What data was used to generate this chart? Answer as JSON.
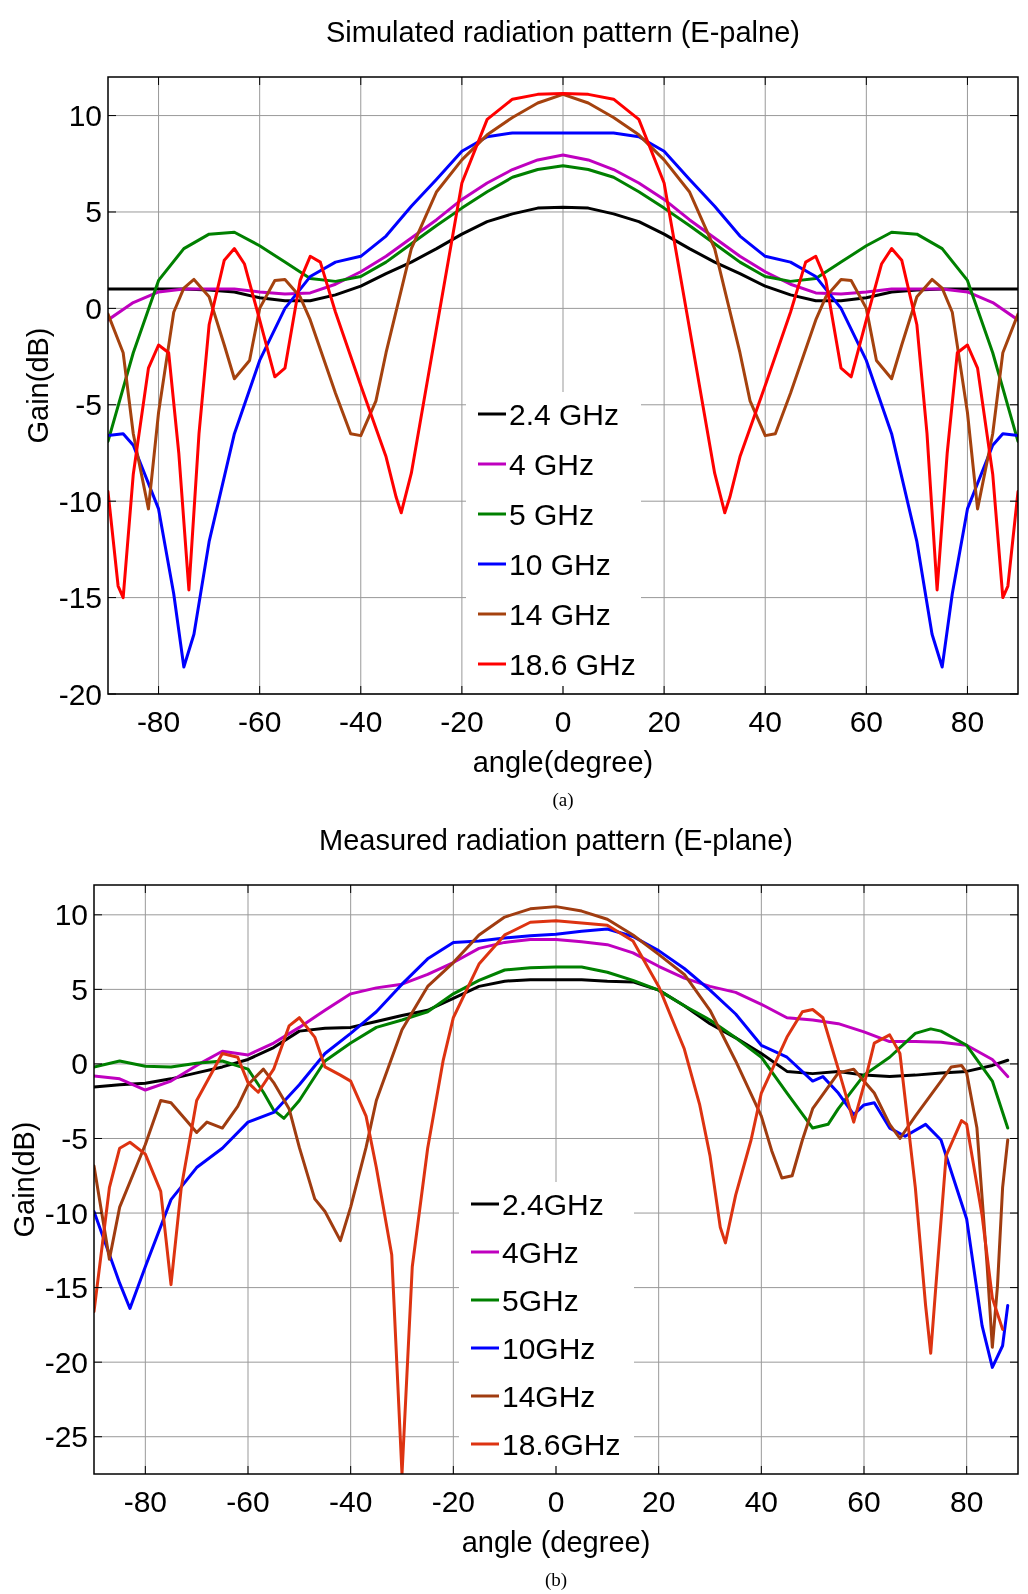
{
  "chart_data": [
    {
      "type": "line",
      "title": "Simulated radiation pattern (E-palne)",
      "xlabel": "angle(degree)",
      "ylabel": "Gain(dB)",
      "annotations": [
        "(a)"
      ],
      "xlim": [
        -90,
        90
      ],
      "ylim": [
        -20,
        12
      ],
      "xticks": [
        -80,
        -60,
        -40,
        -20,
        0,
        20,
        40,
        60,
        80
      ],
      "yticks": [
        -20,
        -15,
        -10,
        -5,
        0,
        5,
        10
      ],
      "grid": true,
      "legend": "bottom",
      "series": [
        {
          "name": "2.4 GHz",
          "color": "#000000",
          "x": [
            -90,
            -85,
            -80,
            -75,
            -70,
            -65,
            -60,
            -55,
            -50,
            -45,
            -40,
            -35,
            -30,
            -25,
            -20,
            -15,
            -10,
            -5,
            0,
            5,
            10,
            15,
            20,
            25,
            30,
            35,
            40,
            45,
            50,
            55,
            60,
            65,
            70,
            75,
            80,
            85,
            90
          ],
          "values": [
            1.0,
            1.0,
            1.0,
            1.0,
            0.95,
            0.85,
            0.55,
            0.4,
            0.4,
            0.7,
            1.15,
            1.8,
            2.4,
            3.1,
            3.85,
            4.5,
            4.9,
            5.2,
            5.25,
            5.2,
            4.9,
            4.5,
            3.85,
            3.1,
            2.4,
            1.8,
            1.15,
            0.7,
            0.4,
            0.4,
            0.55,
            0.85,
            0.95,
            1.0,
            1.0,
            1.0,
            1.0
          ]
        },
        {
          "name": "4 GHz",
          "color": "#bf00bf",
          "x": [
            -90,
            -85,
            -80,
            -75,
            -70,
            -65,
            -60,
            -55,
            -50,
            -45,
            -40,
            -35,
            -30,
            -25,
            -20,
            -15,
            -10,
            -5,
            0,
            5,
            10,
            15,
            20,
            25,
            30,
            35,
            40,
            45,
            50,
            55,
            60,
            65,
            70,
            75,
            80,
            85,
            90
          ],
          "values": [
            -0.6,
            0.3,
            0.85,
            1.0,
            1.0,
            1.0,
            0.85,
            0.75,
            0.8,
            1.25,
            1.9,
            2.7,
            3.65,
            4.6,
            5.65,
            6.5,
            7.2,
            7.7,
            7.95,
            7.7,
            7.2,
            6.5,
            5.65,
            4.6,
            3.65,
            2.7,
            1.9,
            1.25,
            0.8,
            0.75,
            0.85,
            1.0,
            1.0,
            1.0,
            0.85,
            0.3,
            -0.6
          ]
        },
        {
          "name": "5 GHz",
          "color": "#008000",
          "x": [
            -90,
            -85,
            -80,
            -75,
            -70,
            -65,
            -60,
            -55,
            -50,
            -45,
            -40,
            -35,
            -30,
            -25,
            -20,
            -15,
            -10,
            -5,
            0,
            5,
            10,
            15,
            20,
            25,
            30,
            35,
            40,
            45,
            50,
            55,
            60,
            65,
            70,
            75,
            80,
            85,
            90
          ],
          "values": [
            -6.9,
            -2.3,
            1.45,
            3.1,
            3.85,
            3.95,
            3.25,
            2.4,
            1.55,
            1.4,
            1.65,
            2.4,
            3.35,
            4.3,
            5.2,
            6.05,
            6.8,
            7.2,
            7.4,
            7.2,
            6.8,
            6.05,
            5.2,
            4.3,
            3.35,
            2.4,
            1.65,
            1.4,
            1.55,
            2.4,
            3.25,
            3.95,
            3.85,
            3.1,
            1.45,
            -2.3,
            -6.9
          ]
        },
        {
          "name": "10 GHz",
          "color": "#0000ff",
          "x": [
            -90,
            -87,
            -85,
            -80,
            -77,
            -75,
            -73,
            -70,
            -65,
            -60,
            -55,
            -50,
            -45,
            -40,
            -35,
            -30,
            -25,
            -20,
            -15,
            -10,
            0,
            10,
            15,
            20,
            25,
            30,
            35,
            40,
            45,
            50,
            55,
            60,
            65,
            70,
            73,
            75,
            77,
            80,
            85,
            87,
            90
          ],
          "values": [
            -6.6,
            -6.5,
            -7.1,
            -10.4,
            -14.8,
            -18.6,
            -16.9,
            -12.1,
            -6.5,
            -2.7,
            0,
            1.65,
            2.4,
            2.7,
            3.75,
            5.3,
            6.7,
            8.15,
            8.9,
            9.1,
            9.1,
            9.1,
            8.9,
            8.15,
            6.7,
            5.3,
            3.75,
            2.7,
            2.4,
            1.65,
            0,
            -2.7,
            -6.5,
            -12.1,
            -16.9,
            -18.6,
            -14.8,
            -10.4,
            -7.1,
            -6.5,
            -6.6
          ]
        },
        {
          "name": "14 GHz",
          "color": "#a5420e",
          "x": [
            -90,
            -87,
            -85,
            -82,
            -80,
            -77,
            -75,
            -73,
            -70,
            -67,
            -65,
            -62,
            -60,
            -57,
            -55,
            -52,
            -50,
            -45,
            -42,
            -40,
            -37,
            -35,
            -30,
            -25,
            -20,
            -15,
            -10,
            -5,
            0,
            5,
            10,
            15,
            20,
            25,
            30,
            35,
            37,
            40,
            42,
            45,
            50,
            52,
            55,
            57,
            60,
            62,
            65,
            67,
            70,
            73,
            75,
            77,
            80,
            82,
            85,
            87,
            90
          ],
          "values": [
            -0.3,
            -2.3,
            -6.5,
            -10.4,
            -5.4,
            -0.2,
            1.05,
            1.5,
            0.6,
            -1.9,
            -3.65,
            -2.7,
            0,
            1.45,
            1.5,
            0.6,
            -0.6,
            -4.4,
            -6.5,
            -6.6,
            -4.8,
            -2.3,
            3.1,
            6.05,
            7.7,
            9,
            9.9,
            10.65,
            11.1,
            10.65,
            9.9,
            9,
            7.7,
            6.05,
            3.1,
            -2.3,
            -4.8,
            -6.6,
            -6.5,
            -4.4,
            -0.6,
            0.6,
            1.5,
            1.45,
            0,
            -2.7,
            -3.65,
            -1.9,
            0.6,
            1.5,
            1.05,
            -0.2,
            -5.4,
            -10.4,
            -6.5,
            -2.3,
            -0.3
          ]
        },
        {
          "name": "18.6 GHz",
          "color": "#ff0000",
          "x": [
            -90,
            -88,
            -87,
            -85,
            -82,
            -80,
            -78,
            -76,
            -74,
            -72,
            -70,
            -67,
            -65,
            -63,
            -60,
            -57,
            -55,
            -52,
            -50,
            -48,
            -45,
            -40,
            -35,
            -33,
            -32,
            -30,
            -25,
            -20,
            -15,
            -10,
            -5,
            0,
            5,
            10,
            15,
            20,
            25,
            30,
            32,
            33,
            35,
            40,
            45,
            48,
            50,
            52,
            55,
            57,
            60,
            63,
            65,
            67,
            70,
            72,
            74,
            76,
            78,
            80,
            82,
            85,
            87,
            88,
            90
          ],
          "values": [
            -9.5,
            -14.4,
            -15,
            -8.6,
            -3.1,
            -1.9,
            -2.3,
            -7.5,
            -14.6,
            -6.5,
            -0.85,
            2.5,
            3.1,
            2.3,
            -0.6,
            -3.55,
            -3.1,
            1.45,
            2.7,
            2.4,
            -0.2,
            -4,
            -7.7,
            -9.8,
            -10.6,
            -8.55,
            -1,
            6.5,
            9.8,
            10.85,
            11.1,
            11.15,
            11.1,
            10.85,
            9.8,
            6.5,
            -1,
            -8.55,
            -10.6,
            -9.8,
            -7.7,
            -4,
            -0.2,
            2.4,
            2.7,
            1.45,
            -3.1,
            -3.55,
            -0.6,
            2.3,
            3.1,
            2.5,
            -0.85,
            -6.5,
            -14.6,
            -7.5,
            -2.3,
            -1.9,
            -3.1,
            -8.6,
            -15,
            -14.4,
            -9.5
          ]
        }
      ]
    },
    {
      "type": "line",
      "title": "Measured radiation pattern (E-plane)",
      "xlabel": "angle (degree)",
      "ylabel": "Gain(dB)",
      "annotations": [
        "(b)"
      ],
      "xlim": [
        -90,
        90
      ],
      "ylim": [
        -27.5,
        12
      ],
      "xticks": [
        -80,
        -60,
        -40,
        -20,
        0,
        20,
        40,
        60,
        80
      ],
      "yticks": [
        -25,
        -20,
        -15,
        -10,
        -5,
        0,
        5,
        10
      ],
      "grid": true,
      "legend": "bottom",
      "series": [
        {
          "name": "2.4GHz",
          "color": "#000000",
          "x": [
            -90,
            -85,
            -80,
            -75,
            -70,
            -65,
            -60,
            -55,
            -50,
            -45,
            -40,
            -35,
            -30,
            -25,
            -20,
            -15,
            -10,
            -5,
            0,
            5,
            10,
            15,
            20,
            25,
            30,
            35,
            40,
            45,
            50,
            55,
            60,
            65,
            70,
            75,
            80,
            85,
            88
          ],
          "values": [
            -1.55,
            -1.4,
            -1.3,
            -1.0,
            -0.6,
            -0.2,
            0.3,
            1.1,
            2.2,
            2.4,
            2.45,
            2.85,
            3.25,
            3.6,
            4.4,
            5.2,
            5.55,
            5.65,
            5.65,
            5.65,
            5.55,
            5.5,
            4.95,
            3.9,
            2.7,
            1.75,
            0.7,
            -0.5,
            -0.65,
            -0.5,
            -0.75,
            -0.85,
            -0.75,
            -0.6,
            -0.5,
            -0.1,
            0.25
          ]
        },
        {
          "name": "4GHz",
          "color": "#bf00bf",
          "x": [
            -90,
            -85,
            -80,
            -75,
            -70,
            -65,
            -60,
            -55,
            -50,
            -45,
            -40,
            -35,
            -30,
            -25,
            -20,
            -15,
            -10,
            -5,
            0,
            5,
            10,
            15,
            20,
            25,
            30,
            35,
            40,
            45,
            50,
            55,
            60,
            65,
            70,
            75,
            80,
            85,
            88
          ],
          "values": [
            -0.8,
            -1.0,
            -1.75,
            -1.15,
            -0.1,
            0.85,
            0.6,
            1.4,
            2.45,
            3.6,
            4.7,
            5.1,
            5.35,
            6.0,
            6.8,
            7.75,
            8.15,
            8.35,
            8.35,
            8.2,
            8.0,
            7.45,
            6.55,
            5.75,
            5.2,
            4.8,
            4.0,
            3.1,
            2.95,
            2.7,
            2.15,
            1.5,
            1.5,
            1.45,
            1.25,
            0.3,
            -0.85
          ]
        },
        {
          "name": "5GHz",
          "color": "#008000",
          "x": [
            -90,
            -85,
            -80,
            -75,
            -70,
            -65,
            -60,
            -57,
            -55,
            -53,
            -50,
            -45,
            -40,
            -35,
            -30,
            -25,
            -20,
            -15,
            -10,
            -5,
            0,
            5,
            10,
            15,
            20,
            25,
            30,
            35,
            40,
            45,
            50,
            53,
            55,
            60,
            65,
            70,
            73,
            75,
            80,
            85,
            88
          ],
          "values": [
            -0.2,
            0.2,
            -0.15,
            -0.2,
            0.05,
            0.2,
            -0.35,
            -1.9,
            -3.1,
            -3.65,
            -2.45,
            0.2,
            1.4,
            2.45,
            2.95,
            3.5,
            4.7,
            5.6,
            6.3,
            6.45,
            6.5,
            6.5,
            6.15,
            5.6,
            4.95,
            3.9,
            2.95,
            1.75,
            0.45,
            -1.95,
            -4.3,
            -4.05,
            -3.0,
            -0.75,
            0.45,
            2.05,
            2.35,
            2.2,
            1.25,
            -1.15,
            -4.3
          ]
        },
        {
          "name": "10GHz",
          "color": "#0000ff",
          "x": [
            -90,
            -85,
            -83,
            -80,
            -75,
            -70,
            -65,
            -60,
            -55,
            -50,
            -45,
            -40,
            -35,
            -30,
            -25,
            -20,
            -15,
            -10,
            -5,
            0,
            5,
            10,
            15,
            20,
            25,
            30,
            35,
            40,
            45,
            50,
            52,
            55,
            58,
            60,
            62,
            65,
            68,
            72,
            75,
            80,
            83,
            85,
            87,
            88
          ],
          "values": [
            -9.9,
            -14.7,
            -16.4,
            -13.6,
            -9.1,
            -6.95,
            -5.65,
            -3.9,
            -3.25,
            -1.4,
            0.7,
            2.05,
            3.5,
            5.35,
            7.05,
            8.15,
            8.25,
            8.45,
            8.6,
            8.7,
            8.9,
            9.05,
            8.55,
            7.6,
            6.4,
            4.95,
            3.35,
            1.25,
            0.45,
            -1.15,
            -0.85,
            -1.95,
            -3.4,
            -2.75,
            -2.6,
            -4.3,
            -4.85,
            -4.05,
            -5.1,
            -10.4,
            -17.55,
            -20.35,
            -18.9,
            -16.2
          ]
        },
        {
          "name": "14GHz",
          "color": "#a03c10",
          "x": [
            -90,
            -87,
            -85,
            -80,
            -77,
            -75,
            -72,
            -70,
            -68,
            -65,
            -62,
            -60,
            -57,
            -55,
            -52,
            -50,
            -47,
            -45,
            -42,
            -40,
            -37,
            -35,
            -30,
            -25,
            -20,
            -15,
            -10,
            -5,
            0,
            5,
            10,
            15,
            20,
            25,
            30,
            35,
            40,
            42,
            44,
            46,
            48,
            50,
            55,
            58,
            62,
            65,
            67,
            70,
            75,
            77,
            79,
            80,
            82,
            84,
            85,
            86,
            87,
            88
          ],
          "values": [
            -6.85,
            -13.1,
            -9.6,
            -5.4,
            -2.45,
            -2.6,
            -3.8,
            -4.6,
            -3.9,
            -4.3,
            -2.85,
            -1.4,
            -0.35,
            -1.25,
            -3.0,
            -5.6,
            -9.05,
            -9.9,
            -11.85,
            -9.6,
            -5.6,
            -2.45,
            2.3,
            5.2,
            6.8,
            8.65,
            9.85,
            10.4,
            10.55,
            10.25,
            9.7,
            8.65,
            7.35,
            6.0,
            3.6,
            0.2,
            -3.5,
            -5.8,
            -7.65,
            -7.5,
            -5.1,
            -3.0,
            -0.6,
            -0.35,
            -1.95,
            -4.05,
            -5.0,
            -3.5,
            -1.15,
            -0.2,
            -0.1,
            -0.6,
            -4.3,
            -13.6,
            -19.0,
            -14.9,
            -8.3,
            -5.1
          ]
        },
        {
          "name": "18.6GHz",
          "color": "#dd3311",
          "x": [
            -90,
            -87,
            -85,
            -83,
            -80,
            -77,
            -75,
            -73,
            -70,
            -65,
            -62,
            -60,
            -58,
            -55,
            -52,
            -50,
            -47,
            -45,
            -42,
            -40,
            -37,
            -35,
            -32,
            -30,
            -28,
            -25,
            -22,
            -20,
            -15,
            -10,
            -5,
            0,
            5,
            10,
            15,
            20,
            25,
            28,
            30,
            32,
            33,
            35,
            38,
            40,
            45,
            48,
            50,
            52,
            55,
            58,
            60,
            62,
            65,
            67,
            70,
            72,
            73,
            74,
            76,
            79,
            80,
            83,
            85,
            87
          ],
          "values": [
            -16.6,
            -8.3,
            -5.65,
            -5.25,
            -6.05,
            -8.55,
            -14.8,
            -8.3,
            -2.45,
            0.7,
            0.45,
            -1.25,
            -1.9,
            -0.35,
            2.55,
            3.1,
            1.8,
            -0.2,
            -0.75,
            -1.15,
            -3.5,
            -6.95,
            -12.8,
            -27.5,
            -13.6,
            -5.65,
            0.2,
            3.1,
            6.7,
            8.65,
            9.5,
            9.6,
            9.45,
            9.3,
            8.25,
            5.2,
            1.0,
            -2.75,
            -6.15,
            -10.95,
            -12.0,
            -8.8,
            -5.1,
            -1.95,
            1.8,
            3.5,
            3.65,
            3.1,
            -0.35,
            -3.9,
            -1.4,
            1.4,
            1.95,
            0.7,
            -8.3,
            -16.2,
            -19.4,
            -14.9,
            -6.15,
            -3.8,
            -4.05,
            -10.15,
            -15.7,
            -17.8
          ]
        }
      ]
    }
  ]
}
